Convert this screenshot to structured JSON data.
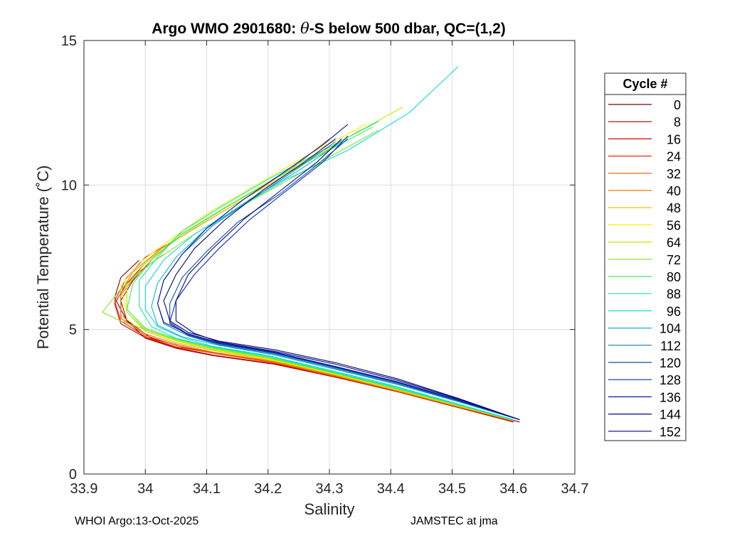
{
  "chart_data": {
    "type": "line",
    "title_main": "Argo WMO 2901680:",
    "title_theta": "θ",
    "title_rest": "-S below 500 dbar,  QC=(1,2)",
    "xlabel": "Salinity",
    "ylabel": "Potential Temperature (˚C)",
    "xlim": [
      33.9,
      34.7
    ],
    "ylim": [
      0,
      15
    ],
    "xticks": [
      33.9,
      34,
      34.1,
      34.2,
      34.3,
      34.4,
      34.5,
      34.6,
      34.7
    ],
    "xtick_labels": [
      "33.9",
      "34",
      "34.1",
      "34.2",
      "34.3",
      "34.4",
      "34.5",
      "34.6",
      "34.7"
    ],
    "yticks": [
      0,
      5,
      10,
      15
    ],
    "ytick_labels": [
      "0",
      "5",
      "10",
      "15"
    ],
    "grid": true,
    "legend_position": "right",
    "legend_title": "Cycle #",
    "legend_entries": [
      {
        "label": "0",
        "color": "#7f0000"
      },
      {
        "label": "8",
        "color": "#a00000"
      },
      {
        "label": "16",
        "color": "#d40000"
      },
      {
        "label": "24",
        "color": "#ea2a00"
      },
      {
        "label": "32",
        "color": "#f35300"
      },
      {
        "label": "40",
        "color": "#e07e00"
      },
      {
        "label": "48",
        "color": "#e8b800"
      },
      {
        "label": "56",
        "color": "#f2f000"
      },
      {
        "label": "64",
        "color": "#b8ee00"
      },
      {
        "label": "72",
        "color": "#7ce81a"
      },
      {
        "label": "80",
        "color": "#3ee86a"
      },
      {
        "label": "88",
        "color": "#1ce2b0"
      },
      {
        "label": "96",
        "color": "#12d6e4"
      },
      {
        "label": "104",
        "color": "#12b0d8"
      },
      {
        "label": "112",
        "color": "#0f7fb6"
      },
      {
        "label": "120",
        "color": "#0d52a8"
      },
      {
        "label": "128",
        "color": "#0b2aa8"
      },
      {
        "label": "136",
        "color": "#0a14a0"
      },
      {
        "label": "144",
        "color": "#08088a"
      },
      {
        "label": "152",
        "color": "#050570"
      }
    ],
    "series": [
      {
        "color": "#7f0000",
        "x": [
          34.61,
          34.52,
          34.42,
          34.32,
          34.22,
          34.12,
          34.06,
          34.01,
          33.97,
          33.95,
          33.96,
          33.99
        ],
        "y": [
          1.8,
          2.3,
          2.9,
          3.4,
          3.85,
          4.15,
          4.4,
          4.7,
          5.3,
          6.1,
          6.8,
          7.4
        ]
      },
      {
        "color": "#a00000",
        "x": [
          34.6,
          34.51,
          34.41,
          34.31,
          34.21,
          34.11,
          34.05,
          34.0,
          33.97,
          33.96,
          33.98,
          34.01
        ],
        "y": [
          1.8,
          2.3,
          2.85,
          3.35,
          3.8,
          4.1,
          4.35,
          4.7,
          5.3,
          6.0,
          6.7,
          7.4
        ]
      },
      {
        "color": "#d40000",
        "x": [
          34.6,
          34.51,
          34.41,
          34.31,
          34.21,
          34.11,
          34.05,
          34.0,
          33.96,
          33.95,
          33.97,
          34.0
        ],
        "y": [
          1.82,
          2.32,
          2.88,
          3.38,
          3.82,
          4.12,
          4.38,
          4.72,
          5.2,
          5.9,
          6.6,
          7.3
        ]
      },
      {
        "color": "#ea2a00",
        "x": [
          34.6,
          34.51,
          34.41,
          34.31,
          34.21,
          34.12,
          34.05,
          34.0,
          33.96,
          33.95,
          33.97,
          34.0,
          34.04
        ],
        "y": [
          1.82,
          2.34,
          2.9,
          3.4,
          3.85,
          4.15,
          4.4,
          4.75,
          5.3,
          6.0,
          6.8,
          7.5,
          8.0
        ]
      },
      {
        "color": "#f35300",
        "x": [
          34.6,
          34.5,
          34.4,
          34.3,
          34.2,
          34.11,
          34.05,
          34.0,
          33.96,
          33.96,
          33.99,
          34.03
        ],
        "y": [
          1.84,
          2.37,
          2.92,
          3.42,
          3.9,
          4.2,
          4.45,
          4.8,
          5.4,
          6.2,
          7.0,
          7.6
        ]
      },
      {
        "color": "#e07e00",
        "x": [
          34.6,
          34.5,
          34.4,
          34.3,
          34.2,
          34.11,
          34.05,
          34.0,
          33.96,
          33.96,
          33.98,
          34.02,
          34.08,
          34.16,
          34.24,
          34.3
        ],
        "y": [
          1.84,
          2.38,
          2.94,
          3.45,
          3.92,
          4.22,
          4.5,
          4.85,
          5.5,
          6.3,
          7.0,
          7.7,
          8.5,
          9.5,
          10.6,
          11.6
        ]
      },
      {
        "color": "#e8b800",
        "x": [
          34.6,
          34.5,
          34.4,
          34.3,
          34.2,
          34.11,
          34.05,
          34.0,
          33.97,
          33.97,
          34.0,
          34.05,
          34.12,
          34.2,
          34.28,
          34.35
        ],
        "y": [
          1.85,
          2.4,
          2.95,
          3.48,
          3.95,
          4.28,
          4.55,
          4.95,
          5.6,
          6.5,
          7.3,
          8.1,
          9.0,
          10.0,
          11.0,
          11.9
        ]
      },
      {
        "color": "#f2f000",
        "x": [
          34.6,
          34.5,
          34.4,
          34.3,
          34.2,
          34.11,
          34.05,
          34.0,
          33.97,
          33.96,
          33.99,
          34.04,
          34.1,
          34.18,
          34.27,
          34.36
        ],
        "y": [
          1.86,
          2.42,
          2.98,
          3.5,
          3.98,
          4.3,
          4.6,
          5.0,
          5.6,
          6.5,
          7.3,
          8.1,
          9.0,
          10.0,
          11.1,
          12.1
        ]
      },
      {
        "color": "#b8ee00",
        "x": [
          34.6,
          34.5,
          34.4,
          34.3,
          34.2,
          34.11,
          34.05,
          34.0,
          33.97,
          33.97,
          34.0,
          34.05,
          34.12,
          34.2,
          34.3,
          34.42
        ],
        "y": [
          1.86,
          2.43,
          3.0,
          3.52,
          4.0,
          4.32,
          4.62,
          5.0,
          5.6,
          6.5,
          7.3,
          8.2,
          9.1,
          10.1,
          11.3,
          12.7
        ]
      },
      {
        "color": "#7ce81a",
        "x": [
          34.6,
          34.5,
          34.4,
          34.3,
          34.2,
          34.11,
          34.05,
          34.0,
          33.96,
          33.93,
          33.96,
          34.01,
          34.08,
          34.16,
          34.26,
          34.38
        ],
        "y": [
          1.86,
          2.44,
          3.0,
          3.53,
          4.02,
          4.35,
          4.65,
          5.0,
          5.3,
          5.6,
          6.4,
          7.3,
          8.3,
          9.3,
          10.5,
          11.9
        ]
      },
      {
        "color": "#3ee86a",
        "x": [
          34.6,
          34.5,
          34.4,
          34.3,
          34.2,
          34.11,
          34.05,
          34.0,
          33.97,
          33.98,
          34.01,
          34.06,
          34.13,
          34.21,
          34.29,
          34.37
        ],
        "y": [
          1.87,
          2.45,
          3.02,
          3.55,
          4.05,
          4.38,
          4.68,
          5.05,
          5.7,
          6.6,
          7.4,
          8.3,
          9.2,
          10.2,
          11.1,
          12.0
        ]
      },
      {
        "color": "#1ce2b0",
        "x": [
          34.6,
          34.5,
          34.4,
          34.3,
          34.2,
          34.11,
          34.05,
          34.01,
          33.99,
          33.99,
          34.02,
          34.06,
          34.12,
          34.2,
          34.29,
          34.38
        ],
        "y": [
          1.87,
          2.47,
          3.05,
          3.57,
          4.08,
          4.4,
          4.7,
          5.1,
          5.8,
          6.7,
          7.5,
          8.4,
          9.2,
          10.2,
          11.2,
          12.2
        ]
      },
      {
        "color": "#12d6e4",
        "x": [
          34.6,
          34.5,
          34.4,
          34.3,
          34.2,
          34.11,
          34.06,
          34.02,
          34.0,
          34.0,
          34.03,
          34.08,
          34.15,
          34.23,
          34.33,
          34.43,
          34.51
        ],
        "y": [
          1.88,
          2.48,
          3.08,
          3.6,
          4.1,
          4.42,
          4.72,
          5.1,
          5.7,
          6.5,
          7.4,
          8.3,
          9.2,
          10.2,
          11.2,
          12.5,
          14.1
        ]
      },
      {
        "color": "#12b0d8",
        "x": [
          34.61,
          34.51,
          34.41,
          34.31,
          34.21,
          34.12,
          34.06,
          34.02,
          34.01,
          34.02,
          34.05,
          34.1,
          34.17,
          34.25,
          34.32
        ],
        "y": [
          1.88,
          2.5,
          3.1,
          3.62,
          4.12,
          4.45,
          4.75,
          5.15,
          5.8,
          6.6,
          7.5,
          8.5,
          9.5,
          10.5,
          11.5
        ]
      },
      {
        "color": "#0f7fb6",
        "x": [
          34.61,
          34.51,
          34.41,
          34.31,
          34.21,
          34.12,
          34.07,
          34.03,
          34.02,
          34.03,
          34.06,
          34.11,
          34.18,
          34.25,
          34.31
        ],
        "y": [
          1.88,
          2.52,
          3.12,
          3.65,
          4.15,
          4.47,
          4.78,
          5.2,
          5.9,
          6.7,
          7.6,
          8.6,
          9.6,
          10.6,
          11.5
        ]
      },
      {
        "color": "#0d52a8",
        "x": [
          34.61,
          34.51,
          34.41,
          34.31,
          34.21,
          34.12,
          34.07,
          34.04,
          34.04,
          34.06,
          34.1,
          34.15,
          34.22,
          34.28,
          34.33
        ],
        "y": [
          1.88,
          2.54,
          3.15,
          3.68,
          4.18,
          4.5,
          4.8,
          5.2,
          5.9,
          6.8,
          7.7,
          8.7,
          9.7,
          10.7,
          11.6
        ]
      },
      {
        "color": "#0b2aa8",
        "x": [
          34.61,
          34.51,
          34.41,
          34.31,
          34.21,
          34.12,
          34.07,
          34.04,
          34.05,
          34.08,
          34.12,
          34.17,
          34.23,
          34.29,
          34.33
        ],
        "y": [
          1.88,
          2.55,
          3.18,
          3.7,
          4.2,
          4.52,
          4.83,
          5.25,
          6.0,
          6.9,
          7.8,
          8.8,
          9.8,
          10.8,
          11.7
        ]
      },
      {
        "color": "#0a14a0",
        "x": [
          34.61,
          34.51,
          34.41,
          34.31,
          34.21,
          34.12,
          34.07,
          34.03,
          34.02,
          34.03,
          34.06,
          34.1,
          34.16,
          34.23,
          34.29,
          34.33
        ],
        "y": [
          1.88,
          2.57,
          3.2,
          3.72,
          4.22,
          4.55,
          4.85,
          5.25,
          5.9,
          6.7,
          7.6,
          8.5,
          9.5,
          10.5,
          11.4,
          12.1
        ]
      },
      {
        "color": "#08088a",
        "x": [
          34.61,
          34.51,
          34.41,
          34.31,
          34.21,
          34.12,
          34.08,
          34.05,
          34.05,
          34.07,
          34.11,
          34.16,
          34.22,
          34.28,
          34.32
        ],
        "y": [
          1.88,
          2.6,
          3.25,
          3.8,
          4.25,
          4.57,
          4.87,
          5.3,
          6.0,
          6.9,
          7.8,
          8.8,
          9.8,
          10.8,
          11.6
        ]
      },
      {
        "color": "#050570",
        "x": [
          34.61,
          34.51,
          34.41,
          34.31,
          34.21,
          34.12,
          34.07,
          34.04,
          34.03,
          34.05,
          34.08,
          34.13,
          34.19,
          34.26,
          34.31
        ],
        "y": [
          1.88,
          2.62,
          3.3,
          3.85,
          4.3,
          4.6,
          4.9,
          5.3,
          6.0,
          6.9,
          7.8,
          8.8,
          9.8,
          10.8,
          11.6
        ]
      }
    ]
  },
  "footer": {
    "left": "WHOI Argo:13-Oct-2025",
    "right": "JAMSTEC at jma"
  }
}
